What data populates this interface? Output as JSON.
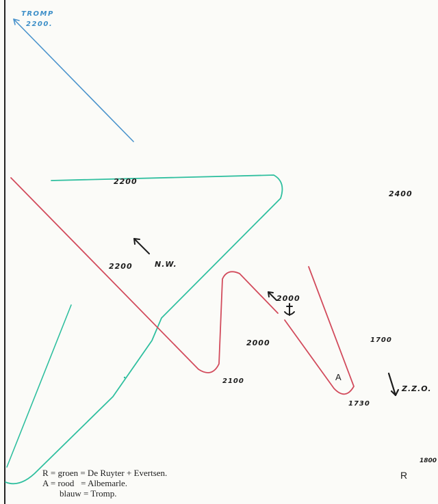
{
  "labels": {
    "tromp_name": "TROMP",
    "tromp_time": "2200.",
    "green_time_top": "2200",
    "time_2400": "2400",
    "red_time_2200": "2200",
    "direction_nw": "N.W.",
    "time_2000_anchor": "2000",
    "time_2000_center": "2000",
    "time_1700": "1700",
    "time_2100": "2100",
    "marker_a": "A",
    "time_1730": "1730",
    "direction_zzo": "Z.Z.O.",
    "time_1800": "1800",
    "marker_r": "R"
  },
  "legend": {
    "rows": [
      "R = groen = De Ruyter + Evertsen.",
      "A = rood   = Albemarle.",
      "blauw = Tromp."
    ]
  },
  "colors": {
    "green": "#2fbf9f",
    "red": "#d24b5c",
    "blue": "#4a93cc",
    "ink": "#1d1d1d"
  },
  "icons": [
    "anchor-icon",
    "arrow-nw-icon",
    "arrow-zzo-icon",
    "arrow-tromp-icon"
  ]
}
